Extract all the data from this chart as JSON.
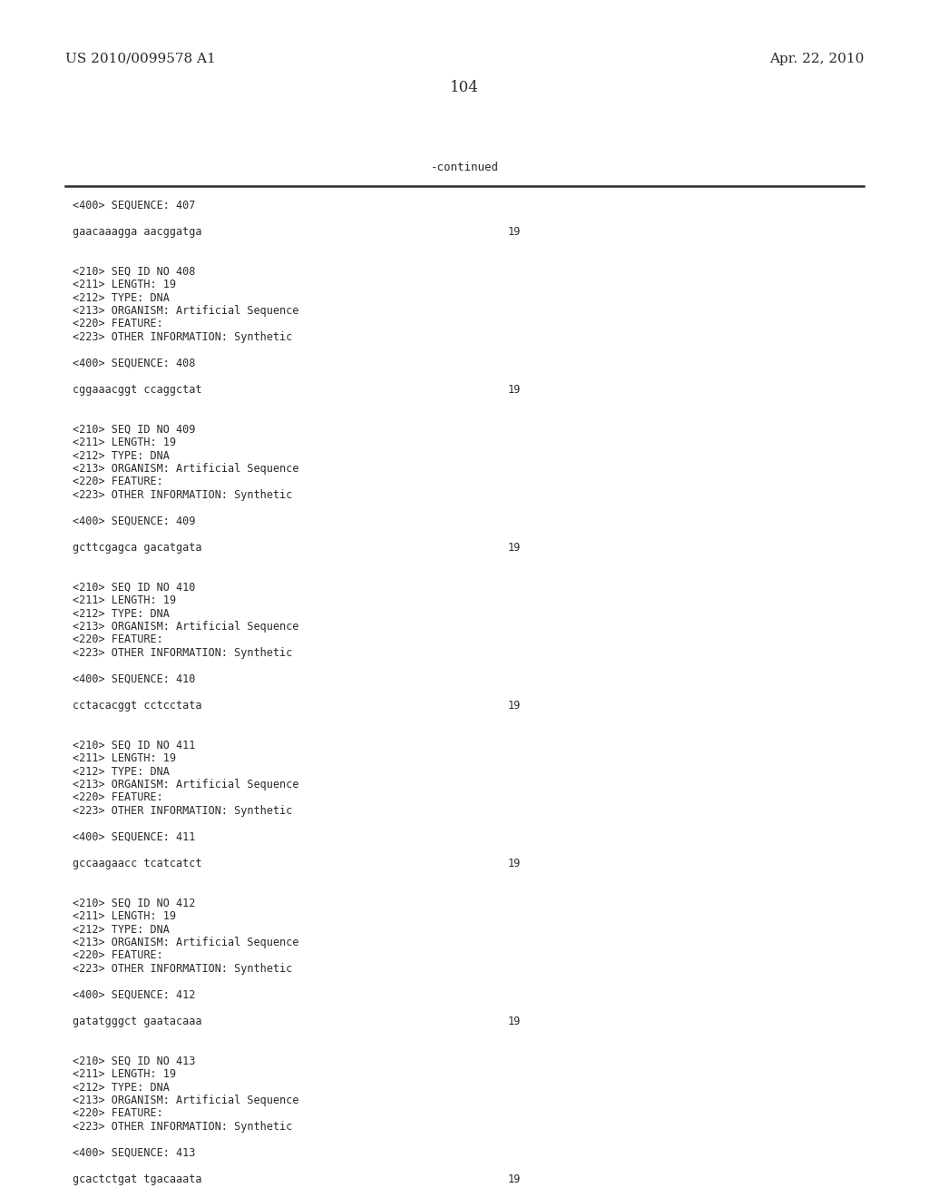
{
  "background_color": "#ffffff",
  "header_left": "US 2010/0099578 A1",
  "header_right": "Apr. 22, 2010",
  "page_number": "104",
  "continued_label": "-continued",
  "font_size_body": 8.5,
  "font_size_header": 11.0,
  "font_size_page": 12.0,
  "text_color": "#2a2a2a",
  "line_color": "#2a2a2a",
  "sections": [
    {
      "seq400": "<400> SEQUENCE: 407",
      "sequence": "gaacaaagga aacggatga",
      "seq_num": "19",
      "meta": [
        "<210> SEQ ID NO 408",
        "<211> LENGTH: 19",
        "<212> TYPE: DNA",
        "<213> ORGANISM: Artificial Sequence",
        "<220> FEATURE:",
        "<223> OTHER INFORMATION: Synthetic"
      ],
      "next400": "<400> SEQUENCE: 408"
    },
    {
      "sequence": "cggaaacggt ccaggctat",
      "seq_num": "19",
      "meta": [
        "<210> SEQ ID NO 409",
        "<211> LENGTH: 19",
        "<212> TYPE: DNA",
        "<213> ORGANISM: Artificial Sequence",
        "<220> FEATURE:",
        "<223> OTHER INFORMATION: Synthetic"
      ],
      "next400": "<400> SEQUENCE: 409"
    },
    {
      "sequence": "gcttcgagca gacatgata",
      "seq_num": "19",
      "meta": [
        "<210> SEQ ID NO 410",
        "<211> LENGTH: 19",
        "<212> TYPE: DNA",
        "<213> ORGANISM: Artificial Sequence",
        "<220> FEATURE:",
        "<223> OTHER INFORMATION: Synthetic"
      ],
      "next400": "<400> SEQUENCE: 410"
    },
    {
      "sequence": "cctacacggt cctcctata",
      "seq_num": "19",
      "meta": [
        "<210> SEQ ID NO 411",
        "<211> LENGTH: 19",
        "<212> TYPE: DNA",
        "<213> ORGANISM: Artificial Sequence",
        "<220> FEATURE:",
        "<223> OTHER INFORMATION: Synthetic"
      ],
      "next400": "<400> SEQUENCE: 411"
    },
    {
      "sequence": "gccaagaacc tcatcatct",
      "seq_num": "19",
      "meta": [
        "<210> SEQ ID NO 412",
        "<211> LENGTH: 19",
        "<212> TYPE: DNA",
        "<213> ORGANISM: Artificial Sequence",
        "<220> FEATURE:",
        "<223> OTHER INFORMATION: Synthetic"
      ],
      "next400": "<400> SEQUENCE: 412"
    },
    {
      "sequence": "gatatgggct gaatacaaa",
      "seq_num": "19",
      "meta": [
        "<210> SEQ ID NO 413",
        "<211> LENGTH: 19",
        "<212> TYPE: DNA",
        "<213> ORGANISM: Artificial Sequence",
        "<220> FEATURE:",
        "<223> OTHER INFORMATION: Synthetic"
      ],
      "next400": "<400> SEQUENCE: 413"
    },
    {
      "sequence": "gcactctgat tgacaaata",
      "seq_num": "19",
      "meta": [],
      "next400": ""
    }
  ]
}
